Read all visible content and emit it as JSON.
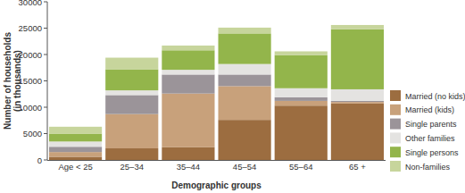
{
  "chart_data": {
    "type": "bar",
    "stacked": true,
    "x_label": "Demographic groups",
    "y_label": "Number of households (in thousands)",
    "categories": [
      "Age < 25",
      "25–34",
      "35–44",
      "45–54",
      "55–64",
      "65 +"
    ],
    "series": [
      {
        "name": "Married (no kids)",
        "color": "#9c6d40",
        "values": [
          600,
          2200,
          2400,
          7600,
          10300,
          10700
        ]
      },
      {
        "name": "Married (kids)",
        "color": "#c8a17b",
        "values": [
          900,
          6500,
          10200,
          6400,
          900,
          300
        ]
      },
      {
        "name": "Single parents",
        "color": "#9b9499",
        "values": [
          1000,
          3600,
          3600,
          2200,
          700,
          200
        ]
      },
      {
        "name": "Other families",
        "color": "#e4e3e1",
        "values": [
          1000,
          900,
          900,
          2000,
          1700,
          2200
        ]
      },
      {
        "name": "Single persons",
        "color": "#93b54b",
        "values": [
          1500,
          4000,
          3700,
          5800,
          6300,
          11400
        ]
      },
      {
        "name": "Non-families",
        "color": "#c7d59c",
        "values": [
          1300,
          2200,
          900,
          1100,
          700,
          800
        ]
      }
    ],
    "ylim": [
      0,
      30000
    ],
    "yticks": [
      0,
      5000,
      10000,
      15000,
      20000,
      25000,
      30000
    ],
    "legend": "right"
  }
}
